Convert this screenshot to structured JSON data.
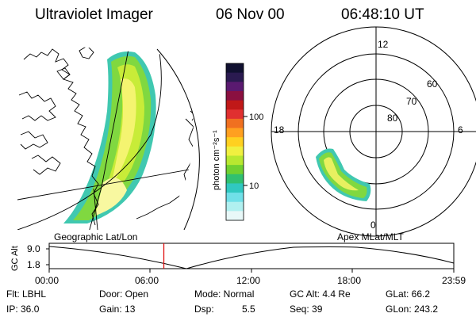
{
  "header": {
    "instrument": "Ultraviolet Imager",
    "date": "06 Nov 00",
    "time": "06:48:10 UT"
  },
  "colorbar": {
    "unit_label": "photon cm⁻²s⁻¹",
    "ticks": [
      "100",
      "10"
    ],
    "colors": [
      "#101030",
      "#2a1a50",
      "#5a1a70",
      "#8a1040",
      "#c01818",
      "#e03030",
      "#f07020",
      "#ffa020",
      "#ffd020",
      "#f0f040",
      "#b8e830",
      "#70d030",
      "#30c070",
      "#30c8c0",
      "#70e0e8",
      "#b0f0f0",
      "#e8f8f8"
    ]
  },
  "left_panel": {
    "label": "Geographic Lat/Lon"
  },
  "right_panel": {
    "label": "Apex MLat/MLT",
    "mlt_labels": {
      "top": "12",
      "left": "18",
      "right": "6",
      "bottom": "0"
    },
    "lat_labels": [
      "60",
      "70",
      "80"
    ]
  },
  "alt_strip": {
    "axis_label": "GC Alt",
    "ticks": [
      "9.0",
      "1.8"
    ],
    "time_ticks": [
      "00:00",
      "06:00",
      "12:00",
      "18:00",
      "23:59"
    ],
    "marker_time_hours": 6.8
  },
  "info": {
    "flt": "Flt: LBHL",
    "door": "Door: Open",
    "mode": "Mode: Normal",
    "gc_alt": "GC Alt: 4.4 Re",
    "glat": "GLat: 66.2",
    "ip": "IP: 36.0",
    "gain": "Gain: 13",
    "dsp": "Dsp:",
    "dsp_value": "5.5",
    "seq": "Seq: 39",
    "glon": "GLon: 243.2"
  }
}
